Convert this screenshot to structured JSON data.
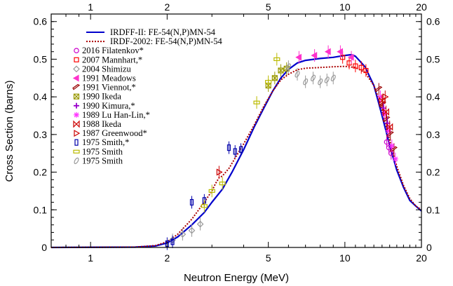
{
  "chart_data": {
    "type": "line",
    "title": "",
    "xlabel": "Neutron Energy (MeV)",
    "ylabel": "Cross Section (barns)",
    "xscale": "log",
    "xlim": [
      0.7,
      20
    ],
    "ylim": [
      0,
      0.62
    ],
    "xticks_major": [
      1,
      2,
      5,
      10,
      20
    ],
    "xtick_labels": [
      "1",
      "2",
      "5",
      "10",
      "20"
    ],
    "yticks": [
      0,
      0.1,
      0.2,
      0.3,
      0.4,
      0.5,
      0.6
    ],
    "ytick_labels": [
      "0",
      "0.1",
      "0.2",
      "0.3",
      "0.4",
      "0.5",
      "0.6"
    ],
    "grid": false,
    "legend_position": "top-left",
    "series": [
      {
        "name": "IRDFF-II: FE-54(N,P)MN-54",
        "kind": "line",
        "color": "#0000cc",
        "style": "solid",
        "x": [
          0.7,
          1.5,
          1.8,
          2.0,
          2.2,
          2.5,
          2.8,
          3.0,
          3.3,
          3.6,
          4.0,
          4.4,
          4.8,
          5.2,
          5.6,
          6.0,
          6.5,
          7.0,
          8.0,
          9.0,
          10.0,
          10.6,
          11.0,
          12.0,
          13.0,
          13.5,
          14.0,
          14.5,
          15.0,
          16.0,
          17.0,
          18.0,
          19.0,
          20.0
        ],
        "y": [
          0.0,
          0.001,
          0.004,
          0.012,
          0.028,
          0.06,
          0.093,
          0.12,
          0.155,
          0.2,
          0.26,
          0.32,
          0.37,
          0.415,
          0.45,
          0.473,
          0.49,
          0.497,
          0.502,
          0.505,
          0.51,
          0.512,
          0.508,
          0.48,
          0.43,
          0.39,
          0.35,
          0.31,
          0.27,
          0.205,
          0.16,
          0.125,
          0.11,
          0.097
        ]
      },
      {
        "name": "IRDF-2002: FE-54(N,P)MN-54",
        "kind": "line",
        "color": "#aa0000",
        "style": "dotted",
        "x": [
          0.7,
          1.5,
          1.8,
          2.0,
          2.2,
          2.5,
          2.8,
          3.0,
          3.1,
          3.2,
          3.3,
          3.5,
          3.8,
          4.0,
          4.4,
          4.8,
          5.2,
          5.6,
          6.0,
          6.5,
          7.0,
          8.0,
          9.0,
          10.0,
          11.0,
          12.0,
          13.0,
          13.5,
          14.0,
          14.5,
          15.0,
          16.0,
          17.0,
          18.0,
          19.0,
          20.0
        ],
        "y": [
          0.0,
          0.001,
          0.005,
          0.015,
          0.035,
          0.075,
          0.12,
          0.15,
          0.17,
          0.185,
          0.19,
          0.21,
          0.25,
          0.275,
          0.325,
          0.375,
          0.415,
          0.445,
          0.46,
          0.472,
          0.476,
          0.478,
          0.48,
          0.481,
          0.478,
          0.465,
          0.43,
          0.4,
          0.365,
          0.325,
          0.285,
          0.215,
          0.165,
          0.13,
          0.11,
          0.1
        ]
      },
      {
        "name": "2016 Filatenkov*",
        "kind": "points",
        "marker": "circle",
        "color": "#cc00cc",
        "x": [
          14.6,
          14.9,
          15.2
        ],
        "y": [
          0.28,
          0.265,
          0.25
        ]
      },
      {
        "name": "2007 Mannhart,*",
        "kind": "points",
        "marker": "square",
        "color": "#ff0000",
        "x": [
          9.8,
          10.4,
          11.0,
          11.6,
          12.1
        ],
        "y": [
          0.505,
          0.49,
          0.482,
          0.478,
          0.47
        ]
      },
      {
        "name": "2004 Shimizu",
        "kind": "points",
        "marker": "diamond",
        "color": "#999999",
        "x": [
          2.1,
          2.3,
          2.5,
          2.7
        ],
        "y": [
          0.02,
          0.035,
          0.045,
          0.062
        ]
      },
      {
        "name": "1991 Meadows",
        "kind": "points",
        "marker": "triangle-left",
        "color": "#ff33cc",
        "x": [
          6.6,
          7.6,
          8.6,
          9.6,
          10.6
        ],
        "y": [
          0.505,
          0.51,
          0.52,
          0.52,
          0.505
        ]
      },
      {
        "name": "1991 Viennot,*",
        "kind": "points",
        "marker": "slash",
        "color": "#990000",
        "x": [
          13.6,
          14.1,
          14.6,
          15.1,
          15.6
        ],
        "y": [
          0.42,
          0.38,
          0.34,
          0.3,
          0.26
        ]
      },
      {
        "name": "1990 Ikeda",
        "kind": "points",
        "marker": "x-box",
        "color": "#999900",
        "x": [
          5.0,
          5.3,
          5.6,
          5.9
        ],
        "y": [
          0.43,
          0.45,
          0.47,
          0.475
        ]
      },
      {
        "name": "1990 Kimura,*",
        "kind": "points",
        "marker": "plus",
        "color": "#9900cc",
        "x": [
          14.2,
          14.7
        ],
        "y": [
          0.37,
          0.33
        ]
      },
      {
        "name": "1989 Lu Han-Lin,*",
        "kind": "points",
        "marker": "star",
        "color": "#ff33ff",
        "x": [
          13.8,
          14.3,
          14.8,
          15.3,
          15.8
        ],
        "y": [
          0.4,
          0.355,
          0.31,
          0.27,
          0.235
        ]
      },
      {
        "name": "1988 Ikeda",
        "kind": "points",
        "marker": "bowtie",
        "color": "#cc0000",
        "x": [
          14.0,
          14.5,
          15.0
        ],
        "y": [
          0.39,
          0.36,
          0.32
        ]
      },
      {
        "name": "1987 Greenwood*",
        "kind": "points",
        "marker": "triangle-right",
        "color": "#cc0000",
        "x": [
          3.2,
          14.4
        ],
        "y": [
          0.2,
          0.4
        ]
      },
      {
        "name": "1975 Smith,*",
        "kind": "points",
        "marker": "rect-v",
        "color": "#0000aa",
        "x": [
          2.0,
          2.1,
          2.5,
          2.8,
          3.5,
          3.7,
          3.9
        ],
        "y": [
          0.01,
          0.015,
          0.12,
          0.125,
          0.265,
          0.255,
          0.26
        ]
      },
      {
        "name": "1975 Smith",
        "kind": "points",
        "marker": "rect-h",
        "color": "#bbbb00",
        "x": [
          2.8,
          3.0,
          3.3,
          4.5,
          5.0,
          5.4
        ],
        "y": [
          0.11,
          0.15,
          0.17,
          0.385,
          0.44,
          0.5
        ]
      },
      {
        "name": "1975 Smith",
        "kind": "points",
        "marker": "ellipse",
        "color": "#999999",
        "x": [
          6.0,
          6.5,
          7.0,
          7.5,
          8.0,
          8.5,
          9.0
        ],
        "y": [
          0.48,
          0.46,
          0.44,
          0.45,
          0.44,
          0.445,
          0.45
        ]
      }
    ]
  }
}
